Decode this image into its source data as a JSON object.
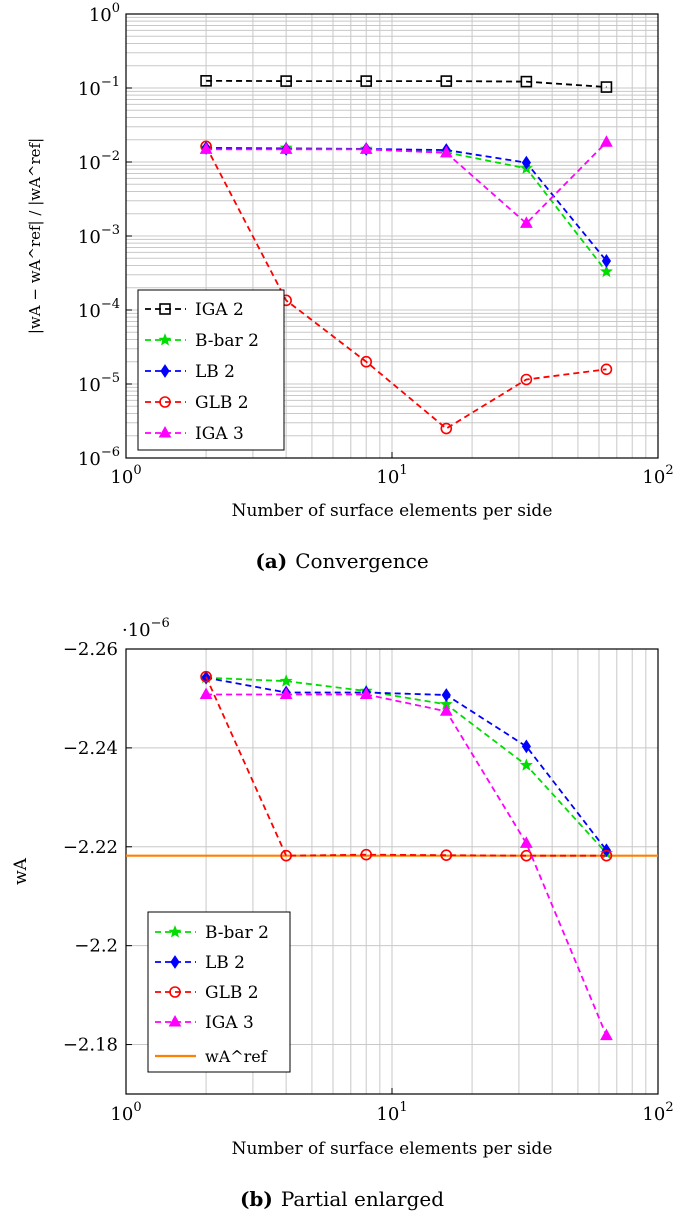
{
  "chart_data": [
    {
      "type": "line",
      "id": "a",
      "caption_label": "(a)",
      "caption_text": "Convergence",
      "xlabel": "Number of surface elements per side",
      "ylabel": "|wA − wA^ref| / |wA^ref|",
      "xscale": "log",
      "yscale": "log",
      "xlim": [
        1,
        100
      ],
      "ylim": [
        1e-06,
        1
      ],
      "xticks": [
        {
          "value": 1,
          "base": "10",
          "exp": "0"
        },
        {
          "value": 10,
          "base": "10",
          "exp": "1"
        },
        {
          "value": 100,
          "base": "10",
          "exp": "2"
        }
      ],
      "yticks": [
        {
          "value": 1e-06,
          "base": "10",
          "exp": "−6"
        },
        {
          "value": 1e-05,
          "base": "10",
          "exp": "−5"
        },
        {
          "value": 0.0001,
          "base": "10",
          "exp": "−4"
        },
        {
          "value": 0.001,
          "base": "10",
          "exp": "−3"
        },
        {
          "value": 0.01,
          "base": "10",
          "exp": "−2"
        },
        {
          "value": 0.1,
          "base": "10",
          "exp": "−1"
        },
        {
          "value": 1,
          "base": "10",
          "exp": "0"
        }
      ],
      "grid": true,
      "legend_position": "bottom-left",
      "x": [
        2,
        4,
        8,
        16,
        32,
        64
      ],
      "series": [
        {
          "name": "IGA 2",
          "color": "#000000",
          "marker": "square",
          "values": [
            0.125,
            0.124,
            0.124,
            0.124,
            0.122,
            0.103
          ]
        },
        {
          "name": "B-bar 2",
          "color": "#00dd00",
          "marker": "star",
          "values": [
            0.0155,
            0.0155,
            0.015,
            0.0135,
            0.0082,
            0.00033
          ]
        },
        {
          "name": "LB 2",
          "color": "#0000ff",
          "marker": "diamond",
          "values": [
            0.0155,
            0.015,
            0.015,
            0.0145,
            0.0098,
            0.00046
          ]
        },
        {
          "name": "GLB 2",
          "color": "#ff0000",
          "marker": "circle",
          "values": [
            0.0163,
            0.000135,
            2e-05,
            2.5e-06,
            1.15e-05,
            1.58e-05
          ]
        },
        {
          "name": "IGA 3",
          "color": "#ff00ff",
          "marker": "triangle",
          "values": [
            0.0148,
            0.0148,
            0.0148,
            0.0133,
            0.00148,
            0.0185
          ]
        }
      ]
    },
    {
      "type": "line",
      "id": "b",
      "caption_label": "(b)",
      "caption_text": "Partial enlarged",
      "xlabel": "Number of surface elements per side",
      "ylabel": "wA",
      "multiplier": "·10",
      "multiplier_exp": "−6",
      "xscale": "log",
      "yscale": "linear",
      "y_reversed": true,
      "xlim": [
        1,
        100
      ],
      "ylim": [
        -2.17,
        -2.26
      ],
      "xticks": [
        {
          "value": 1,
          "base": "10",
          "exp": "0"
        },
        {
          "value": 10,
          "base": "10",
          "exp": "1"
        },
        {
          "value": 100,
          "base": "10",
          "exp": "2"
        }
      ],
      "yticks": [
        {
          "value": -2.26,
          "label": "−2.26"
        },
        {
          "value": -2.24,
          "label": "−2.24"
        },
        {
          "value": -2.22,
          "label": "−2.22"
        },
        {
          "value": -2.2,
          "label": "−2.2"
        },
        {
          "value": -2.18,
          "label": "−2.18"
        }
      ],
      "grid": true,
      "legend_position": "bottom-left",
      "x": [
        2,
        4,
        8,
        16,
        32,
        64
      ],
      "series": [
        {
          "name": "B-bar 2",
          "color": "#00dd00",
          "marker": "star",
          "values": [
            -2.2542,
            -2.2535,
            -2.2515,
            -2.2488,
            -2.2365,
            -2.2187
          ]
        },
        {
          "name": "LB 2",
          "color": "#0000ff",
          "marker": "diamond",
          "values": [
            -2.2542,
            -2.2512,
            -2.2512,
            -2.2507,
            -2.2403,
            -2.2193
          ]
        },
        {
          "name": "GLB 2",
          "color": "#ff0000",
          "marker": "circle",
          "values": [
            -2.2544,
            -2.2182,
            -2.2184,
            -2.2183,
            -2.2182,
            -2.2182
          ]
        },
        {
          "name": "IGA 3",
          "color": "#ff00ff",
          "marker": "triangle",
          "values": [
            -2.2508,
            -2.2508,
            -2.2508,
            -2.2474,
            -2.2207,
            -2.1818
          ]
        }
      ],
      "reference": {
        "name": "wA^ref",
        "color": "#ff8000",
        "value": -2.2182
      }
    }
  ]
}
